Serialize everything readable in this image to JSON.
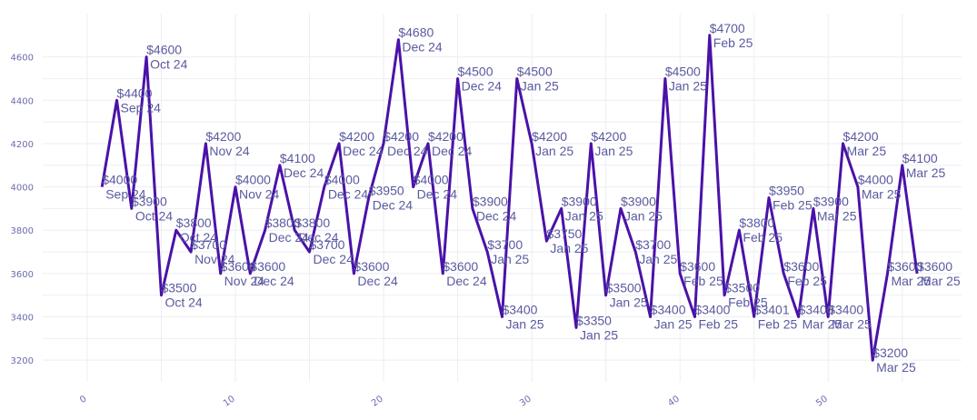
{
  "chart_data": {
    "type": "line",
    "title": "",
    "xlabel": "",
    "ylabel": "",
    "xlim": [
      -3,
      59
    ],
    "ylim": [
      3100,
      4800
    ],
    "x_ticks": [
      0,
      10,
      20,
      30,
      40,
      50
    ],
    "x_tick_labels": [
      "0",
      "10",
      "20",
      "30",
      "40",
      "50"
    ],
    "y_ticks": [
      3200,
      3400,
      3600,
      3800,
      4000,
      4200,
      4400,
      4600
    ],
    "y_tick_labels": [
      "3200",
      "3400",
      "3600",
      "3800",
      "4000",
      "4200",
      "4400",
      "4600"
    ],
    "grid": true,
    "line_color": "#4a12a8",
    "label_color": "#5a5aa0",
    "points": [
      {
        "x": 1,
        "y": 4000,
        "price": "$4000",
        "month": "Sep 24"
      },
      {
        "x": 2,
        "y": 4400,
        "price": "$4400",
        "month": "Sep 24"
      },
      {
        "x": 3,
        "y": 3900,
        "price": "$3900",
        "month": "Oct 24"
      },
      {
        "x": 4,
        "y": 4600,
        "price": "$4600",
        "month": "Oct 24"
      },
      {
        "x": 5,
        "y": 3500,
        "price": "$3500",
        "month": "Oct 24"
      },
      {
        "x": 6,
        "y": 3800,
        "price": "$3800",
        "month": "Oct 24"
      },
      {
        "x": 7,
        "y": 3700,
        "price": "$3700",
        "month": "Nov 24"
      },
      {
        "x": 8,
        "y": 4200,
        "price": "$4200",
        "month": "Nov 24"
      },
      {
        "x": 9,
        "y": 3600,
        "price": "$3600",
        "month": "Nov 24"
      },
      {
        "x": 10,
        "y": 4000,
        "price": "$4000",
        "month": "Nov 24"
      },
      {
        "x": 11,
        "y": 3600,
        "price": "$3600",
        "month": "Dec 24"
      },
      {
        "x": 12,
        "y": 3800,
        "price": "$3800",
        "month": "Dec 24"
      },
      {
        "x": 13,
        "y": 4100,
        "price": "$4100",
        "month": "Dec 24"
      },
      {
        "x": 14,
        "y": 3800,
        "price": "$3800",
        "month": "Dec 24"
      },
      {
        "x": 15,
        "y": 3700,
        "price": "$3700",
        "month": "Dec 24"
      },
      {
        "x": 16,
        "y": 4000,
        "price": "$4000",
        "month": "Dec 24"
      },
      {
        "x": 17,
        "y": 4200,
        "price": "$4200",
        "month": "Dec 24"
      },
      {
        "x": 18,
        "y": 3600,
        "price": "$3600",
        "month": "Dec 24"
      },
      {
        "x": 19,
        "y": 3950,
        "price": "$3950",
        "month": "Dec 24"
      },
      {
        "x": 20,
        "y": 4200,
        "price": "$4200",
        "month": "Dec 24"
      },
      {
        "x": 21,
        "y": 4680,
        "price": "$4680",
        "month": "Dec 24"
      },
      {
        "x": 22,
        "y": 4000,
        "price": "$4000",
        "month": "Dec 24"
      },
      {
        "x": 23,
        "y": 4200,
        "price": "$4200",
        "month": "Dec 24"
      },
      {
        "x": 24,
        "y": 3600,
        "price": "$3600",
        "month": "Dec 24"
      },
      {
        "x": 25,
        "y": 4500,
        "price": "$4500",
        "month": "Dec 24"
      },
      {
        "x": 26,
        "y": 3900,
        "price": "$3900",
        "month": "Dec 24"
      },
      {
        "x": 27,
        "y": 3700,
        "price": "$3700",
        "month": "Jan 25"
      },
      {
        "x": 28,
        "y": 3400,
        "price": "$3400",
        "month": "Jan 25"
      },
      {
        "x": 29,
        "y": 4500,
        "price": "$4500",
        "month": "Jan 25"
      },
      {
        "x": 30,
        "y": 4200,
        "price": "$4200",
        "month": "Jan 25"
      },
      {
        "x": 31,
        "y": 3750,
        "price": "$3750",
        "month": "Jan 25"
      },
      {
        "x": 32,
        "y": 3900,
        "price": "$3900",
        "month": "Jan 25"
      },
      {
        "x": 33,
        "y": 3350,
        "price": "$3350",
        "month": "Jan 25"
      },
      {
        "x": 34,
        "y": 4200,
        "price": "$4200",
        "month": "Jan 25"
      },
      {
        "x": 35,
        "y": 3500,
        "price": "$3500",
        "month": "Jan 25"
      },
      {
        "x": 36,
        "y": 3900,
        "price": "$3900",
        "month": "Jan 25"
      },
      {
        "x": 37,
        "y": 3700,
        "price": "$3700",
        "month": "Jan 25"
      },
      {
        "x": 38,
        "y": 3400,
        "price": "$3400",
        "month": "Jan 25"
      },
      {
        "x": 39,
        "y": 4500,
        "price": "$4500",
        "month": "Jan 25"
      },
      {
        "x": 40,
        "y": 3600,
        "price": "$3600",
        "month": "Feb 25"
      },
      {
        "x": 41,
        "y": 3400,
        "price": "$3400",
        "month": "Feb 25"
      },
      {
        "x": 42,
        "y": 4700,
        "price": "$4700",
        "month": "Feb 25"
      },
      {
        "x": 43,
        "y": 3500,
        "price": "$3500",
        "month": "Feb 25"
      },
      {
        "x": 44,
        "y": 3800,
        "price": "$3800",
        "month": "Feb 25"
      },
      {
        "x": 45,
        "y": 3401,
        "price": "$3401",
        "month": "Feb 25"
      },
      {
        "x": 46,
        "y": 3950,
        "price": "$3950",
        "month": "Feb 25"
      },
      {
        "x": 47,
        "y": 3600,
        "price": "$3600",
        "month": "Feb 25"
      },
      {
        "x": 48,
        "y": 3400,
        "price": "$3400",
        "month": "Mar 25"
      },
      {
        "x": 49,
        "y": 3900,
        "price": "$3900",
        "month": "Mar 25"
      },
      {
        "x": 50,
        "y": 3400,
        "price": "$3400",
        "month": "Mar 25"
      },
      {
        "x": 51,
        "y": 4200,
        "price": "$4200",
        "month": "Mar 25"
      },
      {
        "x": 52,
        "y": 4000,
        "price": "$4000",
        "month": "Mar 25"
      },
      {
        "x": 53,
        "y": 3200,
        "price": "$3200",
        "month": "Mar 25"
      },
      {
        "x": 54,
        "y": 3600,
        "price": "$3600",
        "month": "Mar 25"
      },
      {
        "x": 55,
        "y": 4100,
        "price": "$4100",
        "month": "Mar 25"
      },
      {
        "x": 56,
        "y": 3600,
        "price": "$3600",
        "month": "Mar 25"
      }
    ]
  }
}
